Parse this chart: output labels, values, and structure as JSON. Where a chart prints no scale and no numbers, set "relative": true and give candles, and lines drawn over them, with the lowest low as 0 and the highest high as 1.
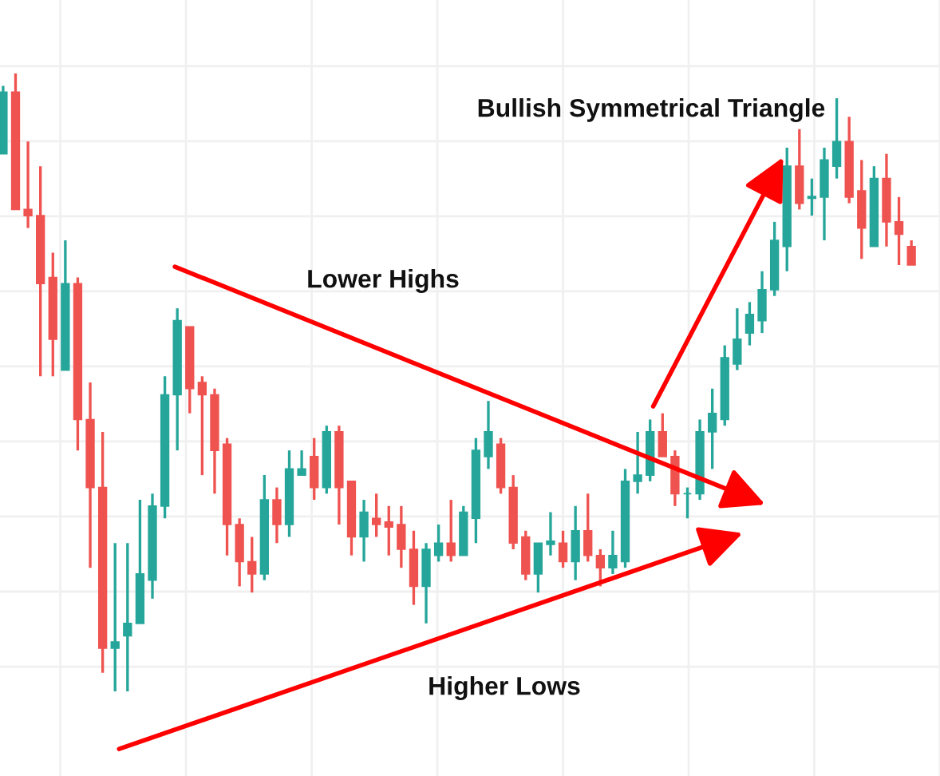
{
  "chart_data": {
    "type": "candlestick",
    "relative": true,
    "grid": true,
    "tick_labels": false,
    "annotations": [
      "Bullish Symmetrical Triangle",
      "Lower Highs",
      "Higher Lows"
    ],
    "categories": [
      null,
      null,
      null,
      null,
      null,
      null,
      null,
      null,
      null,
      null,
      null,
      null,
      null,
      null,
      null,
      null,
      null,
      null,
      null,
      null,
      null,
      null,
      null,
      null,
      null,
      null,
      null,
      null,
      null,
      null,
      null,
      null,
      null,
      null,
      null,
      null,
      null,
      null,
      null,
      null,
      null,
      null,
      null,
      null,
      null,
      null,
      null,
      null,
      null,
      null,
      null,
      null,
      null,
      null,
      null,
      null,
      null,
      null,
      null,
      null,
      null,
      null,
      null,
      null,
      null,
      null,
      null,
      null,
      null,
      null,
      null,
      null,
      null,
      null
    ],
    "ohlc": [
      [
        0.87,
        0.98,
        0.87,
        0.97
      ],
      [
        0.97,
        1.0,
        0.78,
        0.78
      ],
      [
        0.78,
        0.89,
        0.75,
        0.77
      ],
      [
        0.77,
        0.85,
        0.51,
        0.66
      ],
      [
        0.67,
        0.71,
        0.51,
        0.57
      ],
      [
        0.52,
        0.73,
        0.52,
        0.66
      ],
      [
        0.66,
        0.67,
        0.39,
        0.44
      ],
      [
        0.44,
        0.5,
        0.2,
        0.33
      ],
      [
        0.33,
        0.42,
        0.03,
        0.07
      ],
      [
        0.07,
        0.24,
        0.0,
        0.08
      ],
      [
        0.09,
        0.24,
        0.0,
        0.11
      ],
      [
        0.11,
        0.31,
        0.11,
        0.19
      ],
      [
        0.18,
        0.32,
        0.15,
        0.3
      ],
      [
        0.3,
        0.51,
        0.28,
        0.48
      ],
      [
        0.48,
        0.62,
        0.39,
        0.6
      ],
      [
        0.59,
        0.59,
        0.45,
        0.49
      ],
      [
        0.5,
        0.51,
        0.35,
        0.48
      ],
      [
        0.48,
        0.49,
        0.32,
        0.39
      ],
      [
        0.4,
        0.41,
        0.22,
        0.27
      ],
      [
        0.27,
        0.28,
        0.17,
        0.21
      ],
      [
        0.21,
        0.25,
        0.16,
        0.19
      ],
      [
        0.19,
        0.35,
        0.18,
        0.31
      ],
      [
        0.31,
        0.33,
        0.24,
        0.27
      ],
      [
        0.27,
        0.39,
        0.25,
        0.36
      ],
      [
        0.35,
        0.39,
        0.35,
        0.36
      ],
      [
        0.38,
        0.41,
        0.31,
        0.33
      ],
      [
        0.33,
        0.43,
        0.32,
        0.42
      ],
      [
        0.42,
        0.43,
        0.27,
        0.33
      ],
      [
        0.34,
        0.34,
        0.22,
        0.25
      ],
      [
        0.25,
        0.31,
        0.21,
        0.29
      ],
      [
        0.28,
        0.32,
        0.25,
        0.27
      ],
      [
        0.274,
        0.3,
        0.22,
        0.266
      ],
      [
        0.27,
        0.3,
        0.2,
        0.23
      ],
      [
        0.23,
        0.26,
        0.14,
        0.17
      ],
      [
        0.17,
        0.24,
        0.11,
        0.23
      ],
      [
        0.22,
        0.27,
        0.21,
        0.24
      ],
      [
        0.24,
        0.31,
        0.21,
        0.22
      ],
      [
        0.22,
        0.3,
        0.22,
        0.29
      ],
      [
        0.28,
        0.41,
        0.24,
        0.39
      ],
      [
        0.38,
        0.47,
        0.36,
        0.42
      ],
      [
        0.4,
        0.41,
        0.32,
        0.33
      ],
      [
        0.33,
        0.35,
        0.23,
        0.24
      ],
      [
        0.25,
        0.26,
        0.18,
        0.19
      ],
      [
        0.19,
        0.24,
        0.16,
        0.24
      ],
      [
        0.238,
        0.29,
        0.22,
        0.243
      ],
      [
        0.24,
        0.26,
        0.2,
        0.21
      ],
      [
        0.21,
        0.3,
        0.18,
        0.26
      ],
      [
        0.26,
        0.32,
        0.21,
        0.22
      ],
      [
        0.22,
        0.23,
        0.17,
        0.2
      ],
      [
        0.2,
        0.26,
        0.19,
        0.22
      ],
      [
        0.21,
        0.36,
        0.2,
        0.34
      ],
      [
        0.34,
        0.42,
        0.32,
        0.35
      ],
      [
        0.35,
        0.44,
        0.34,
        0.42
      ],
      [
        0.42,
        0.45,
        0.38,
        0.38
      ],
      [
        0.38,
        0.39,
        0.3,
        0.32
      ],
      [
        0.32,
        0.33,
        0.28,
        0.32
      ],
      [
        0.32,
        0.44,
        0.31,
        0.42
      ],
      [
        0.42,
        0.49,
        0.36,
        0.45
      ],
      [
        0.44,
        0.56,
        0.43,
        0.54
      ],
      [
        0.53,
        0.62,
        0.52,
        0.57
      ],
      [
        0.58,
        0.63,
        0.56,
        0.61
      ],
      [
        0.6,
        0.68,
        0.58,
        0.65
      ],
      [
        0.65,
        0.76,
        0.64,
        0.73
      ],
      [
        0.72,
        0.88,
        0.68,
        0.85
      ],
      [
        0.85,
        0.91,
        0.78,
        0.79
      ],
      [
        0.798,
        0.83,
        0.77,
        0.801
      ],
      [
        0.8,
        0.88,
        0.73,
        0.86
      ],
      [
        0.85,
        0.96,
        0.83,
        0.89
      ],
      [
        0.89,
        0.93,
        0.79,
        0.8
      ],
      [
        0.81,
        0.86,
        0.7,
        0.75
      ],
      [
        0.72,
        0.85,
        0.72,
        0.83
      ],
      [
        0.83,
        0.87,
        0.72,
        0.76
      ],
      [
        0.76,
        0.8,
        0.69,
        0.74
      ],
      [
        0.72,
        0.73,
        0.69,
        0.69
      ]
    ],
    "colors": [
      "#26a69a",
      "#ef5350",
      "#ef5350",
      "#ef5350",
      "#ef5350",
      "#26a69a",
      "#ef5350",
      "#ef5350",
      "#ef5350",
      "#26a69a",
      "#26a69a",
      "#26a69a",
      "#26a69a",
      "#26a69a",
      "#26a69a",
      "#ef5350",
      "#ef5350",
      "#ef5350",
      "#ef5350",
      "#ef5350",
      "#ef5350",
      "#26a69a",
      "#ef5350",
      "#26a69a",
      "#26a69a",
      "#ef5350",
      "#26a69a",
      "#ef5350",
      "#ef5350",
      "#26a69a",
      "#ef5350",
      "#ef5350",
      "#ef5350",
      "#ef5350",
      "#26a69a",
      "#26a69a",
      "#ef5350",
      "#26a69a",
      "#26a69a",
      "#26a69a",
      "#ef5350",
      "#ef5350",
      "#ef5350",
      "#26a69a",
      "#26a69a",
      "#ef5350",
      "#26a69a",
      "#ef5350",
      "#ef5350",
      "#26a69a",
      "#26a69a",
      "#26a69a",
      "#26a69a",
      "#ef5350",
      "#ef5350",
      "#26a69a",
      "#26a69a",
      "#26a69a",
      "#26a69a",
      "#26a69a",
      "#26a69a",
      "#26a69a",
      "#26a69a",
      "#26a69a",
      "#ef5350",
      "#26a69a",
      "#26a69a",
      "#26a69a",
      "#ef5350",
      "#ef5350",
      "#26a69a",
      "#ef5350",
      "#ef5350",
      "#ef5350"
    ]
  }
}
